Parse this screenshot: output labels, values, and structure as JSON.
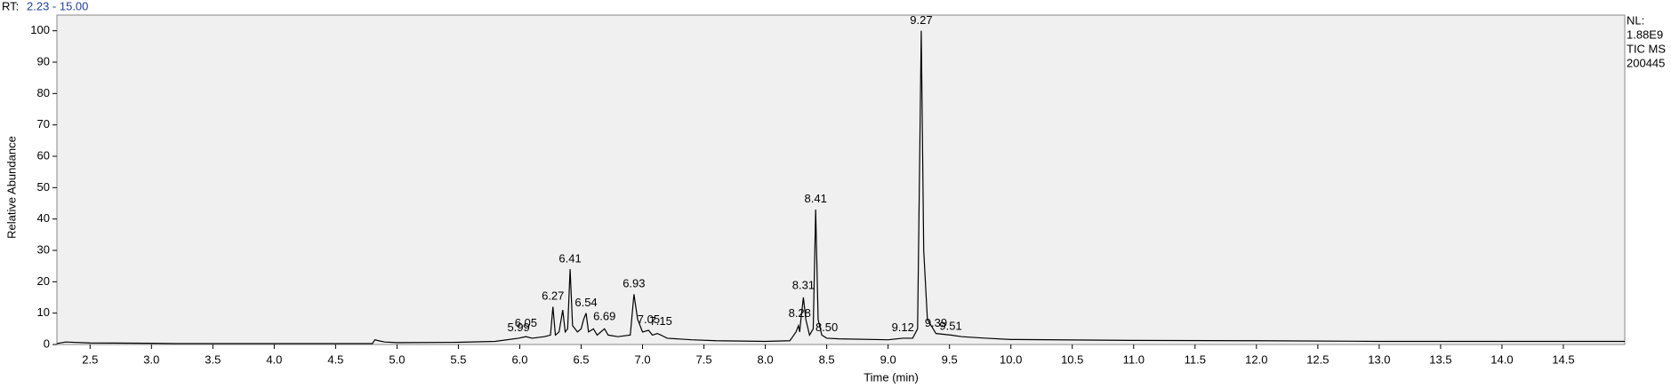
{
  "chart_data": {
    "type": "line",
    "rt_label": "RT:",
    "rt_range": "2.23 - 15.00",
    "info": [
      "NL:",
      "1.88E9",
      "TIC  MS",
      "200445"
    ],
    "xlabel": "Time (min)",
    "ylabel": "Relative Abundance",
    "color": "#000000",
    "xlim": [
      2.23,
      15.0
    ],
    "ylim": [
      0,
      105
    ],
    "yticks": [
      0,
      10,
      20,
      30,
      40,
      50,
      60,
      70,
      80,
      90,
      100
    ],
    "xticks": [
      2.5,
      {
        "value": 3,
        "label": "3.0"
      },
      3.5,
      {
        "value": 4,
        "label": "4.0"
      },
      4.5,
      {
        "value": 5,
        "label": "5.0"
      },
      5.5,
      {
        "value": 6,
        "label": "6.0"
      },
      6.5,
      {
        "value": 7,
        "label": "7.0"
      },
      7.5,
      {
        "value": 8,
        "label": "8.0"
      },
      8.5,
      {
        "value": 9,
        "label": "9.0"
      },
      9.5,
      {
        "value": 10,
        "label": "10.0"
      },
      10.5,
      {
        "value": 11,
        "label": "11.0"
      },
      11.5,
      {
        "value": 12,
        "label": "12.0"
      },
      12.5,
      {
        "value": 13,
        "label": "13.0"
      },
      13.5,
      {
        "value": 14,
        "label": "14.0"
      },
      14.5
    ],
    "x": [
      2.23,
      2.3,
      2.5,
      3.0,
      3.2,
      3.5,
      4.0,
      4.5,
      4.8,
      4.82,
      4.85,
      4.9,
      5.0,
      5.5,
      5.8,
      5.99,
      6.05,
      6.1,
      6.2,
      6.25,
      6.27,
      6.29,
      6.32,
      6.35,
      6.37,
      6.39,
      6.41,
      6.43,
      6.47,
      6.5,
      6.52,
      6.54,
      6.56,
      6.6,
      6.63,
      6.66,
      6.69,
      6.72,
      6.8,
      6.9,
      6.93,
      6.96,
      7.0,
      7.05,
      7.08,
      7.12,
      7.15,
      7.2,
      7.4,
      7.6,
      8.0,
      8.2,
      8.25,
      8.27,
      8.28,
      8.29,
      8.31,
      8.33,
      8.36,
      8.39,
      8.41,
      8.43,
      8.46,
      8.5,
      8.6,
      9.0,
      9.12,
      9.2,
      9.24,
      9.27,
      9.29,
      9.32,
      9.39,
      9.51,
      9.6,
      9.8,
      10.0,
      11.0,
      12.0,
      13.0,
      14.0,
      15.0
    ],
    "values": [
      0.3,
      0.8,
      0.5,
      0.4,
      0.3,
      0.3,
      0.3,
      0.3,
      0.3,
      1.5,
      1.2,
      0.8,
      0.6,
      0.7,
      1.0,
      2.0,
      2.5,
      2.0,
      2.5,
      3,
      12,
      3,
      4,
      11,
      4,
      5,
      24,
      6,
      4,
      5,
      8,
      10,
      4,
      5,
      3,
      4,
      5,
      3,
      2.5,
      3,
      16,
      8,
      4,
      4.5,
      3,
      3.5,
      3,
      2,
      1.5,
      1.2,
      1.0,
      1.2,
      4,
      6,
      4,
      8,
      15,
      8,
      3,
      5,
      43,
      8,
      3,
      2,
      1.8,
      1.5,
      2,
      2,
      5,
      100,
      30,
      8,
      3.5,
      3,
      2.5,
      2,
      1.6,
      1.3,
      1.2,
      1.0,
      1.0,
      1.0
    ],
    "peaks": [
      {
        "x": 5.99,
        "label": "5.99",
        "y": 3.5
      },
      {
        "x": 6.05,
        "label": "6.05",
        "y": 5
      },
      {
        "x": 6.27,
        "label": "6.27",
        "y": 13.5
      },
      {
        "x": 6.41,
        "label": "6.41",
        "y": 25.5
      },
      {
        "x": 6.54,
        "label": "6.54",
        "y": 11.5
      },
      {
        "x": 6.69,
        "label": "6.69",
        "y": 7
      },
      {
        "x": 6.93,
        "label": "6.93",
        "y": 17.5
      },
      {
        "x": 7.05,
        "label": "7.05",
        "y": 6
      },
      {
        "x": 7.15,
        "label": "7.15",
        "y": 5.5
      },
      {
        "x": 8.28,
        "label": "8.28",
        "y": 8
      },
      {
        "x": 8.31,
        "label": "8.31",
        "y": 17
      },
      {
        "x": 8.41,
        "label": "8.41",
        "y": 44.5
      },
      {
        "x": 8.5,
        "label": "8.50",
        "y": 3.5
      },
      {
        "x": 9.12,
        "label": "9.12",
        "y": 3.5
      },
      {
        "x": 9.27,
        "label": "9.27",
        "y": 101.5
      },
      {
        "x": 9.39,
        "label": "9.39",
        "y": 5
      },
      {
        "x": 9.51,
        "label": "9.51",
        "y": 4
      }
    ]
  }
}
